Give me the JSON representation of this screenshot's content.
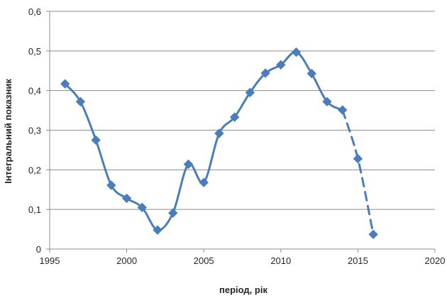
{
  "chart_data": {
    "type": "line",
    "title": "",
    "xlabel": "період, рік",
    "ylabel": "Інтегральний показник",
    "xlim": [
      1995,
      2020
    ],
    "ylim": [
      0,
      0.6
    ],
    "x_ticks": [
      "1995",
      "2000",
      "2005",
      "2010",
      "2015",
      "2020"
    ],
    "y_ticks": [
      "0",
      "0,1",
      "0,2",
      "0,3",
      "0,4",
      "0,5",
      "0,6"
    ],
    "grid": "horizontal",
    "legend": "none",
    "series_color": "#4a7ebb",
    "series": [
      {
        "style": "solid",
        "x": [
          1996,
          1997,
          1998,
          1999,
          2000,
          2001,
          2002,
          2003,
          2004,
          2005,
          2006,
          2007,
          2008,
          2009,
          2010,
          2011,
          2012,
          2013,
          2014
        ],
        "y": [
          0.417,
          0.372,
          0.275,
          0.161,
          0.128,
          0.105,
          0.048,
          0.091,
          0.214,
          0.168,
          0.292,
          0.333,
          0.395,
          0.444,
          0.465,
          0.497,
          0.443,
          0.372,
          0.351
        ]
      },
      {
        "style": "dashed",
        "x": [
          2014,
          2015,
          2016
        ],
        "y": [
          0.351,
          0.228,
          0.037
        ]
      }
    ]
  }
}
